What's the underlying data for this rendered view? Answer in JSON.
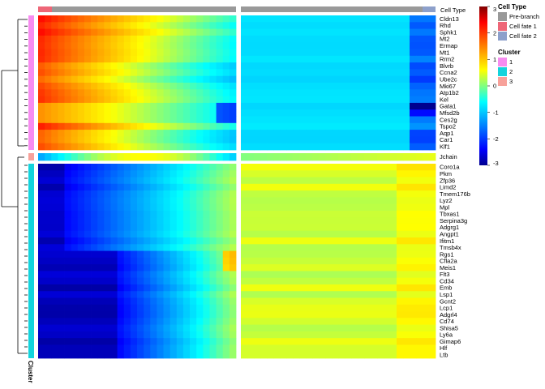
{
  "chart_data": {
    "type": "heatmap",
    "annotation_title": "Cell Type",
    "row_annotation_title": "Cluster",
    "cell_type_legend": [
      {
        "label": "Pre-branch",
        "color": "#999999"
      },
      {
        "label": "Cell fate 1",
        "color": "#EE6677"
      },
      {
        "label": "Cell fate 2",
        "color": "#8DA0CB"
      }
    ],
    "cluster_legend": [
      {
        "label": "1",
        "color": "#F78CF0"
      },
      {
        "label": "2",
        "color": "#13D4DC"
      },
      {
        "label": "3",
        "color": "#F7A19A"
      }
    ],
    "colorscale": {
      "min": -3,
      "max": 3,
      "ticks": [
        3,
        2,
        1,
        0,
        -1,
        -2,
        -3
      ],
      "colors": [
        "#00008F",
        "#0000FF",
        "#0080FF",
        "#00FFFF",
        "#80FF80",
        "#FFFF00",
        "#FF8000",
        "#FF0000",
        "#800000"
      ]
    },
    "blocks": [
      {
        "cluster": "1",
        "genes": [
          "Cldn13",
          "Rhd",
          "Sphk1",
          "Mt2",
          "Ermap",
          "Mt1",
          "Rrm2",
          "Blvrb",
          "Ccna2",
          "Ube2c",
          "Mki67",
          "Atp1b2",
          "Kel",
          "Gata1",
          "Mfsd2b",
          "Ces2g",
          "Tspo2",
          "Aqp1",
          "Car1",
          "Klf1"
        ]
      },
      {
        "cluster": "3",
        "genes": [
          "Jchain"
        ]
      },
      {
        "cluster": "2",
        "genes": [
          "Coro1a",
          "Pkm",
          "Zfp36",
          "Limd2",
          "Tmem176b",
          "Lyz2",
          "Mpl",
          "Tbxas1",
          "Serpina3g",
          "Adgrg1",
          "Angpt1",
          "Ifitm1",
          "Tmsb4x",
          "Rgs1",
          "Cfla2a",
          "Meis1",
          "Flt3",
          "Cd34",
          "Emb",
          "Lsp1",
          "Gcnt2",
          "Lcp1",
          "Adgrl4",
          "Cd74",
          "Shisa5",
          "Ly6a",
          "Gimap6",
          "Hlf",
          "Ltb"
        ]
      }
    ]
  }
}
